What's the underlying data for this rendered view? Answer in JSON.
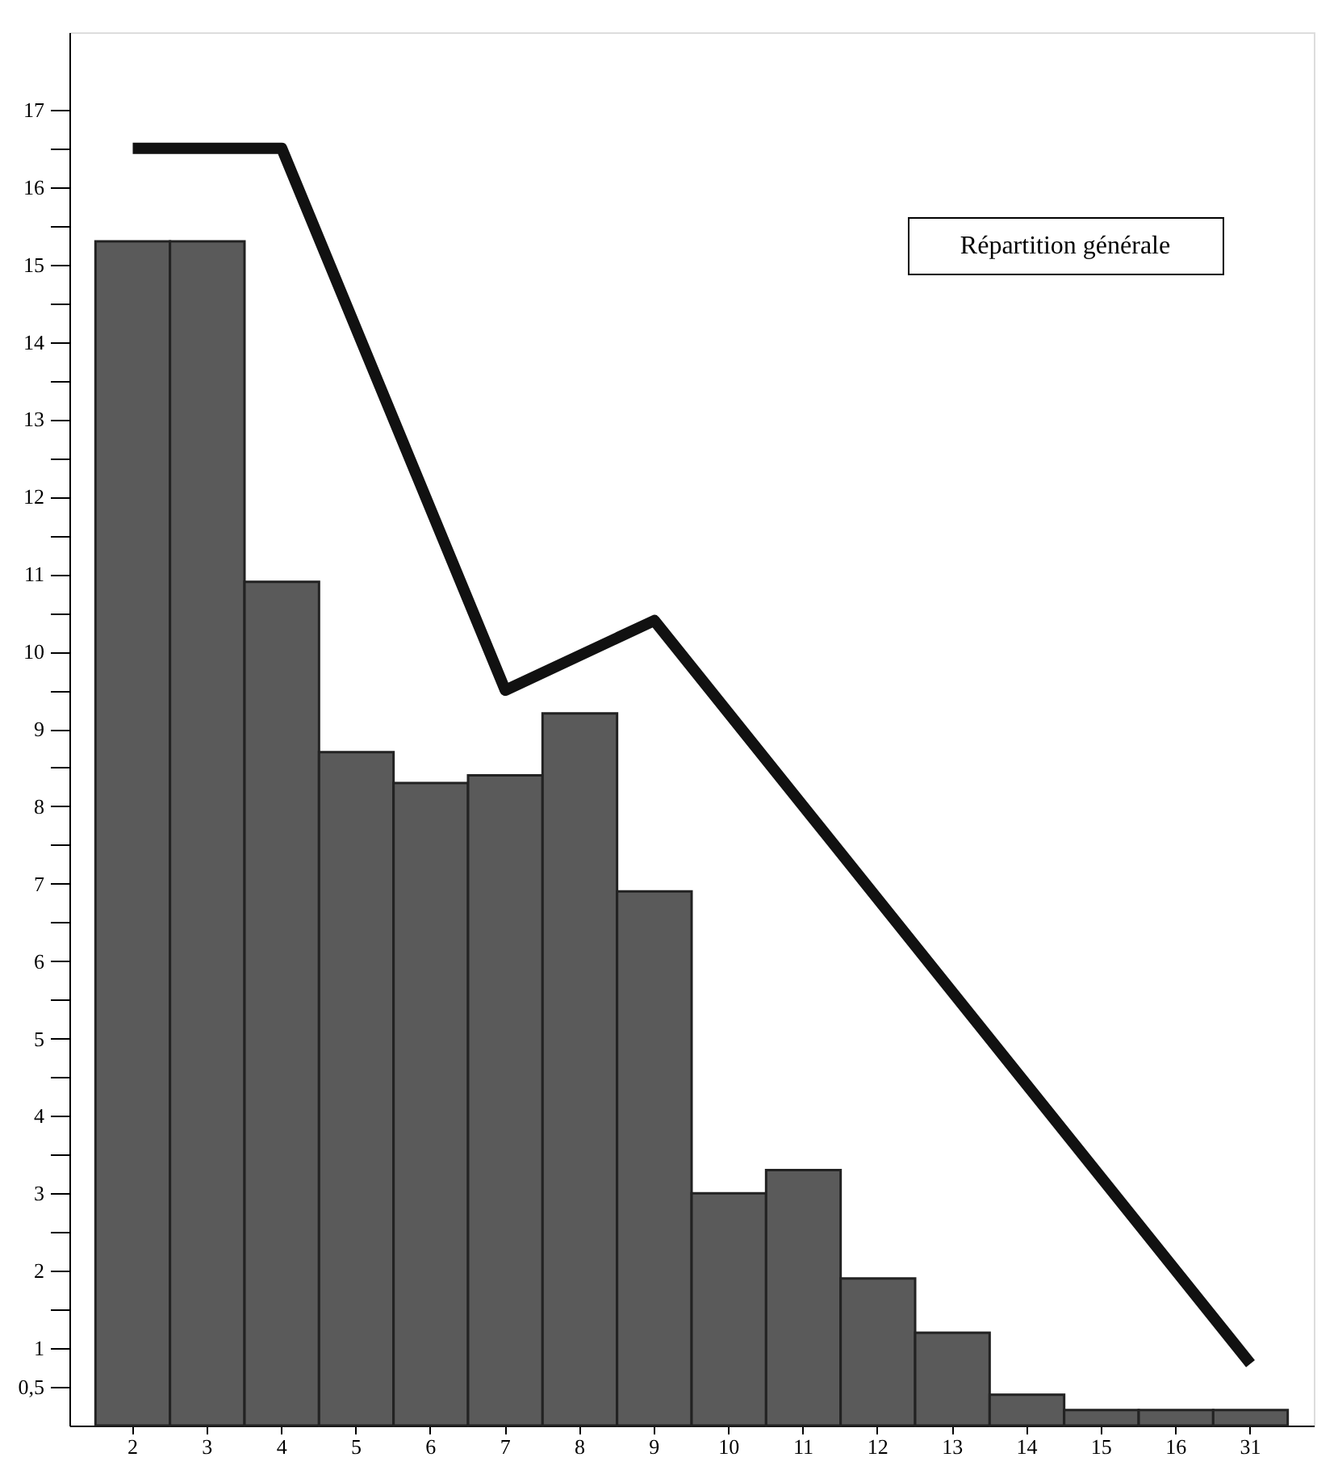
{
  "chart_data": {
    "type": "bar",
    "categories": [
      "2",
      "3",
      "4",
      "5",
      "6",
      "7",
      "8",
      "9",
      "10",
      "11",
      "12",
      "13",
      "14",
      "15",
      "16",
      "31"
    ],
    "series": [
      {
        "color": "#5a5a5a",
        "values": [
          15.3,
          15.3,
          10.9,
          8.7,
          8.3,
          8.4,
          9.2,
          6.9,
          3.0,
          3.3,
          1.9,
          1.2,
          0.4,
          0.2,
          0.2,
          0.2
        ]
      },
      {
        "type": "line",
        "color": "#111111",
        "x": [
          "2",
          "4",
          "7",
          "9",
          "31"
        ],
        "values": [
          16.5,
          16.5,
          9.5,
          10.4,
          0.8
        ]
      }
    ],
    "ylim": [
      0,
      18
    ],
    "yticks": [
      {
        "value": 0.5,
        "label": "0,5"
      },
      1,
      {
        "value": 1.5,
        "label": null
      },
      2,
      {
        "value": 2.5,
        "label": null
      },
      3,
      {
        "value": 3.5,
        "label": null
      },
      4,
      {
        "value": 4.5,
        "label": null
      },
      5,
      {
        "value": 5.5,
        "label": null
      },
      6,
      {
        "value": 6.5,
        "label": null
      },
      7,
      {
        "value": 7.5,
        "label": null
      },
      8,
      {
        "value": 8.5,
        "label": null
      },
      9,
      {
        "value": 9.5,
        "label": null
      },
      10,
      {
        "value": 10.5,
        "label": null
      },
      11,
      {
        "value": 11.5,
        "label": null
      },
      12,
      {
        "value": 12.5,
        "label": null
      },
      13,
      {
        "value": 13.5,
        "label": null
      },
      14,
      {
        "value": 14.5,
        "label": null
      },
      15,
      {
        "value": 15.5,
        "label": null
      },
      16,
      {
        "value": 16.5,
        "label": null
      },
      17
    ],
    "annotations": [
      "Répartition générale"
    ],
    "grid": false
  }
}
